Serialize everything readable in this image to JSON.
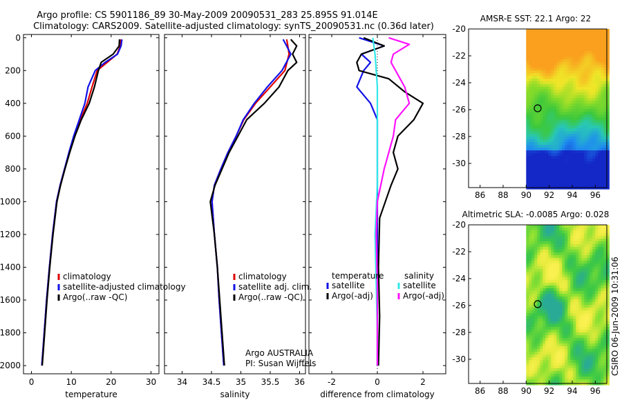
{
  "title": {
    "line1": "Argo profile: CS 5901186_89 30-May-2009 20090531_283 25.895S 91.014E",
    "line2": "Climatology: CARS2009. Satellite-adjusted climatology: synTS_20090531.nc (0.36d later)"
  },
  "side_label": "CSIRO 06-Jun-2009 10:31:06",
  "colors": {
    "red": "#e00000",
    "blue": "#1010e8",
    "black": "#000000",
    "cyan": "#30e8e8",
    "magenta": "#ff10ff"
  },
  "chart_data": [
    {
      "type": "line",
      "name": "temperature-profile",
      "xlabel": "temperature",
      "xlim": [
        -2,
        32
      ],
      "ylim": [
        2050,
        -20
      ],
      "xticks": [
        0,
        10,
        20,
        30
      ],
      "yticks": [
        0,
        200,
        400,
        600,
        800,
        1000,
        1200,
        1400,
        1600,
        1800,
        2000
      ],
      "legend": [
        "climatology",
        "satellite-adjusted climatology",
        "Argo(..raw -QC)"
      ],
      "series": [
        {
          "name": "climatology",
          "color": "red",
          "points": [
            [
              22.4,
              10
            ],
            [
              22.3,
              50
            ],
            [
              21.5,
              100
            ],
            [
              19.0,
              150
            ],
            [
              16.5,
              200
            ],
            [
              15.2,
              300
            ],
            [
              14.0,
              400
            ],
            [
              12.3,
              500
            ],
            [
              10.8,
              600
            ],
            [
              9.5,
              700
            ],
            [
              8.3,
              800
            ],
            [
              7.2,
              900
            ],
            [
              6.3,
              1000
            ],
            [
              5.3,
              1200
            ],
            [
              4.5,
              1400
            ],
            [
              3.8,
              1600
            ],
            [
              3.2,
              1800
            ],
            [
              2.6,
              2000
            ]
          ]
        },
        {
          "name": "satellite-adjusted climatology",
          "color": "blue",
          "points": [
            [
              22.7,
              10
            ],
            [
              22.5,
              50
            ],
            [
              21.6,
              100
            ],
            [
              18.5,
              150
            ],
            [
              16.0,
              200
            ],
            [
              14.2,
              300
            ],
            [
              13.4,
              400
            ],
            [
              12.0,
              500
            ],
            [
              10.6,
              600
            ],
            [
              9.4,
              700
            ],
            [
              8.3,
              800
            ],
            [
              7.2,
              900
            ],
            [
              6.3,
              1000
            ],
            [
              5.3,
              1200
            ],
            [
              4.5,
              1400
            ],
            [
              3.8,
              1600
            ],
            [
              3.2,
              1800
            ],
            [
              2.6,
              2000
            ]
          ]
        },
        {
          "name": "Argo(..raw -QC)",
          "color": "black",
          "points": [
            [
              22.1,
              10
            ],
            [
              22.0,
              50
            ],
            [
              20.5,
              100
            ],
            [
              17.5,
              150
            ],
            [
              16.8,
              200
            ],
            [
              15.8,
              300
            ],
            [
              14.5,
              400
            ],
            [
              12.5,
              500
            ],
            [
              10.9,
              600
            ],
            [
              9.6,
              700
            ],
            [
              8.4,
              800
            ],
            [
              7.3,
              900
            ],
            [
              6.4,
              1000
            ],
            [
              5.4,
              1200
            ],
            [
              4.6,
              1400
            ],
            [
              3.9,
              1600
            ],
            [
              3.3,
              1800
            ],
            [
              2.7,
              2000
            ]
          ]
        }
      ]
    },
    {
      "type": "line",
      "name": "salinity-profile",
      "xlabel": "salinity",
      "xlim": [
        33.7,
        36.1
      ],
      "ylim": [
        2050,
        -20
      ],
      "xticks": [
        34,
        34.5,
        35,
        35.5,
        36
      ],
      "legend": [
        "climatology",
        "satellite adj. clim.",
        "Argo(..raw -QC)"
      ],
      "annotation": [
        "Argo AUSTRALIA",
        "PI: Susan Wijffels"
      ],
      "series": [
        {
          "name": "climatology",
          "color": "red",
          "points": [
            [
              35.78,
              10
            ],
            [
              35.8,
              50
            ],
            [
              35.82,
              100
            ],
            [
              35.75,
              200
            ],
            [
              35.5,
              300
            ],
            [
              35.25,
              400
            ],
            [
              35.05,
              500
            ],
            [
              34.92,
              600
            ],
            [
              34.78,
              700
            ],
            [
              34.66,
              800
            ],
            [
              34.55,
              900
            ],
            [
              34.51,
              1000
            ],
            [
              34.55,
              1200
            ],
            [
              34.6,
              1400
            ],
            [
              34.63,
              1600
            ],
            [
              34.67,
              1800
            ],
            [
              34.71,
              2000
            ]
          ]
        },
        {
          "name": "satellite adj. clim.",
          "color": "blue",
          "points": [
            [
              35.72,
              10
            ],
            [
              35.78,
              50
            ],
            [
              35.85,
              100
            ],
            [
              35.7,
              200
            ],
            [
              35.45,
              300
            ],
            [
              35.23,
              400
            ],
            [
              35.04,
              500
            ],
            [
              34.92,
              600
            ],
            [
              34.78,
              700
            ],
            [
              34.66,
              800
            ],
            [
              34.55,
              900
            ],
            [
              34.51,
              1000
            ],
            [
              34.55,
              1200
            ],
            [
              34.6,
              1400
            ],
            [
              34.63,
              1600
            ],
            [
              34.67,
              1800
            ],
            [
              34.71,
              2000
            ]
          ]
        },
        {
          "name": "Argo(..raw -QC)",
          "color": "black",
          "points": [
            [
              35.85,
              10
            ],
            [
              35.95,
              50
            ],
            [
              35.88,
              100
            ],
            [
              35.95,
              150
            ],
            [
              35.8,
              200
            ],
            [
              35.65,
              300
            ],
            [
              35.4,
              400
            ],
            [
              35.1,
              500
            ],
            [
              34.95,
              600
            ],
            [
              34.8,
              700
            ],
            [
              34.68,
              800
            ],
            [
              34.56,
              900
            ],
            [
              34.48,
              1000
            ],
            [
              34.55,
              1200
            ],
            [
              34.6,
              1400
            ],
            [
              34.64,
              1600
            ],
            [
              34.68,
              1800
            ],
            [
              34.72,
              2000
            ]
          ]
        }
      ]
    },
    {
      "type": "line",
      "name": "difference-profile",
      "xlabel": "difference from climatology",
      "xlim": [
        -3,
        3
      ],
      "ylim": [
        2050,
        -20
      ],
      "xticks": [
        -2,
        0,
        2
      ],
      "legend_left_title": "temperature",
      "legend_right_title": "salinity",
      "legend": [
        "satellite",
        "Argo(-adj)",
        "satellite",
        "Argo(-adj)"
      ],
      "series": [
        {
          "name": "temperature satellite",
          "color": "blue",
          "points": [
            [
              -0.8,
              0
            ],
            [
              0.3,
              50
            ],
            [
              -0.7,
              100
            ],
            [
              -0.3,
              150
            ],
            [
              -0.6,
              200
            ],
            [
              -0.9,
              300
            ],
            [
              -0.3,
              400
            ],
            [
              0.0,
              500
            ],
            [
              0.0,
              700
            ],
            [
              0.0,
              900
            ],
            [
              0.0,
              1100
            ],
            [
              0.0,
              1400
            ],
            [
              0.0,
              1700
            ],
            [
              0.0,
              2000
            ]
          ]
        },
        {
          "name": "temperature Argo(-adj)",
          "color": "black",
          "points": [
            [
              -0.6,
              0
            ],
            [
              0.3,
              50
            ],
            [
              -0.7,
              100
            ],
            [
              -0.9,
              150
            ],
            [
              -0.8,
              200
            ],
            [
              0.5,
              250
            ],
            [
              1.2,
              330
            ],
            [
              2.0,
              400
            ],
            [
              1.6,
              500
            ],
            [
              0.9,
              600
            ],
            [
              0.7,
              700
            ],
            [
              0.9,
              800
            ],
            [
              0.6,
              900
            ],
            [
              0.1,
              1100
            ],
            [
              0.05,
              1400
            ],
            [
              0.1,
              1700
            ],
            [
              0.05,
              2000
            ]
          ]
        },
        {
          "name": "salinity satellite",
          "color": "cyan",
          "points": [
            [
              -0.2,
              0
            ],
            [
              -0.1,
              100
            ],
            [
              0.0,
              300
            ],
            [
              0.0,
              600
            ],
            [
              0.0,
              900
            ],
            [
              -0.1,
              1200
            ],
            [
              -0.05,
              1500
            ],
            [
              0.0,
              1800
            ],
            [
              0.0,
              2000
            ]
          ]
        },
        {
          "name": "salinity Argo(-adj)",
          "color": "magenta",
          "points": [
            [
              0.5,
              0
            ],
            [
              1.4,
              40
            ],
            [
              0.7,
              100
            ],
            [
              0.6,
              150
            ],
            [
              0.8,
              200
            ],
            [
              1.2,
              300
            ],
            [
              1.4,
              400
            ],
            [
              0.8,
              500
            ],
            [
              0.7,
              600
            ],
            [
              0.3,
              800
            ],
            [
              0.0,
              1000
            ],
            [
              -0.05,
              1200
            ],
            [
              0.0,
              1500
            ],
            [
              0.0,
              1800
            ],
            [
              0.0,
              2000
            ]
          ]
        }
      ]
    },
    {
      "type": "heatmap",
      "name": "sst-map",
      "title": "AMSR-E SST: 22.1  Argo: 22",
      "xlim": [
        85,
        97
      ],
      "ylim": [
        -31.8,
        -20
      ],
      "xticks": [
        86,
        88,
        90,
        92,
        94,
        96
      ],
      "yticks": [
        -20,
        -22,
        -24,
        -26,
        -28,
        -30
      ],
      "data_west_limit": 90,
      "argo_position": [
        91.0,
        -25.9
      ]
    },
    {
      "type": "heatmap",
      "name": "sla-map",
      "title": "Altimetric SLA: -0.0085  Argo: 0.028",
      "xlim": [
        85,
        97
      ],
      "ylim": [
        -31.8,
        -20
      ],
      "xticks": [
        86,
        88,
        90,
        92,
        94,
        96
      ],
      "yticks": [
        -20,
        -22,
        -24,
        -26,
        -28,
        -30
      ],
      "data_west_limit": 90,
      "argo_position": [
        91.0,
        -25.9
      ]
    }
  ]
}
